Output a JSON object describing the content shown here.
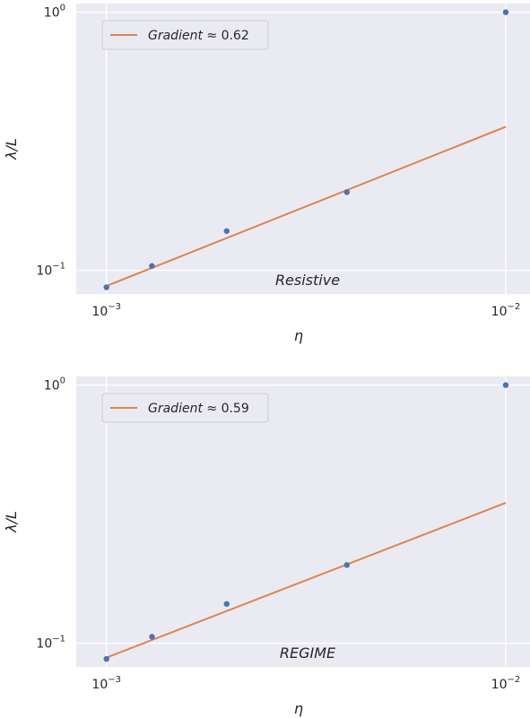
{
  "chart_data": [
    {
      "type": "scatter",
      "xscale": "log",
      "yscale": "log",
      "xlim": [
        0.00084,
        0.0115
      ],
      "ylim": [
        0.081,
        1.08
      ],
      "xlabel": "η",
      "ylabel": "λ/L",
      "xticks": [
        {
          "value": 0.001,
          "base": "10",
          "exp": "−3"
        },
        {
          "value": 0.01,
          "base": "10",
          "exp": "−2"
        }
      ],
      "yticks": [
        {
          "value": 0.1,
          "base": "10",
          "exp": "−1"
        },
        {
          "value": 1.0,
          "base": "10",
          "exp": "0"
        }
      ],
      "grid": true,
      "legend": {
        "placement": "top-left",
        "label_italic": "Gradient",
        "label_rest": " ≈ 0.62"
      },
      "annotation": "Resistive",
      "colors": {
        "points": "#4c72b0",
        "line": "#dd8452",
        "background": "#eaeaf2"
      },
      "points": [
        {
          "x": 0.001,
          "y": 0.086
        },
        {
          "x": 0.0013,
          "y": 0.104
        },
        {
          "x": 0.002,
          "y": 0.142
        },
        {
          "x": 0.004,
          "y": 0.201
        },
        {
          "x": 0.01,
          "y": 1.0
        }
      ],
      "fit_line": [
        {
          "x": 0.001,
          "y": 0.087
        },
        {
          "x": 0.01,
          "y": 0.36
        }
      ]
    },
    {
      "type": "scatter",
      "xscale": "log",
      "yscale": "log",
      "xlim": [
        0.00084,
        0.0115
      ],
      "ylim": [
        0.081,
        1.08
      ],
      "xlabel": "η",
      "ylabel": "λ/L",
      "xticks": [
        {
          "value": 0.001,
          "base": "10",
          "exp": "−3"
        },
        {
          "value": 0.01,
          "base": "10",
          "exp": "−2"
        }
      ],
      "yticks": [
        {
          "value": 0.1,
          "base": "10",
          "exp": "−1"
        },
        {
          "value": 1.0,
          "base": "10",
          "exp": "0"
        }
      ],
      "grid": true,
      "legend": {
        "placement": "top-left",
        "label_italic": "Gradient",
        "label_rest": " ≈ 0.59"
      },
      "annotation": "REGIME",
      "colors": {
        "points": "#4c72b0",
        "line": "#dd8452",
        "background": "#eaeaf2"
      },
      "points": [
        {
          "x": 0.001,
          "y": 0.087
        },
        {
          "x": 0.0013,
          "y": 0.106
        },
        {
          "x": 0.002,
          "y": 0.142
        },
        {
          "x": 0.004,
          "y": 0.201
        },
        {
          "x": 0.01,
          "y": 1.0
        }
      ],
      "fit_line": [
        {
          "x": 0.001,
          "y": 0.088
        },
        {
          "x": 0.01,
          "y": 0.35
        }
      ]
    }
  ]
}
